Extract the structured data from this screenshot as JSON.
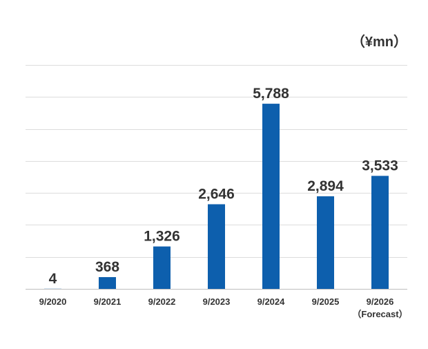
{
  "chart_data": {
    "type": "bar",
    "unit_label": "（¥mn）",
    "categories": [
      "9/2020",
      "9/2021",
      "9/2022",
      "9/2023",
      "9/2024",
      "9/2025",
      "9/2026"
    ],
    "category_notes": [
      "",
      "",
      "",
      "",
      "",
      "",
      "（Forecast）"
    ],
    "values": [
      4,
      368,
      1326,
      2646,
      5788,
      2894,
      3533
    ],
    "value_labels": [
      "4",
      "368",
      "1,326",
      "2,646",
      "5,788",
      "2,894",
      "3,533"
    ],
    "ylim": [
      0,
      7000
    ],
    "grid": true,
    "legend": "none",
    "bar_color": "#0d5fad",
    "text_color": "#333333",
    "grid_color": "#dcdcdc"
  }
}
